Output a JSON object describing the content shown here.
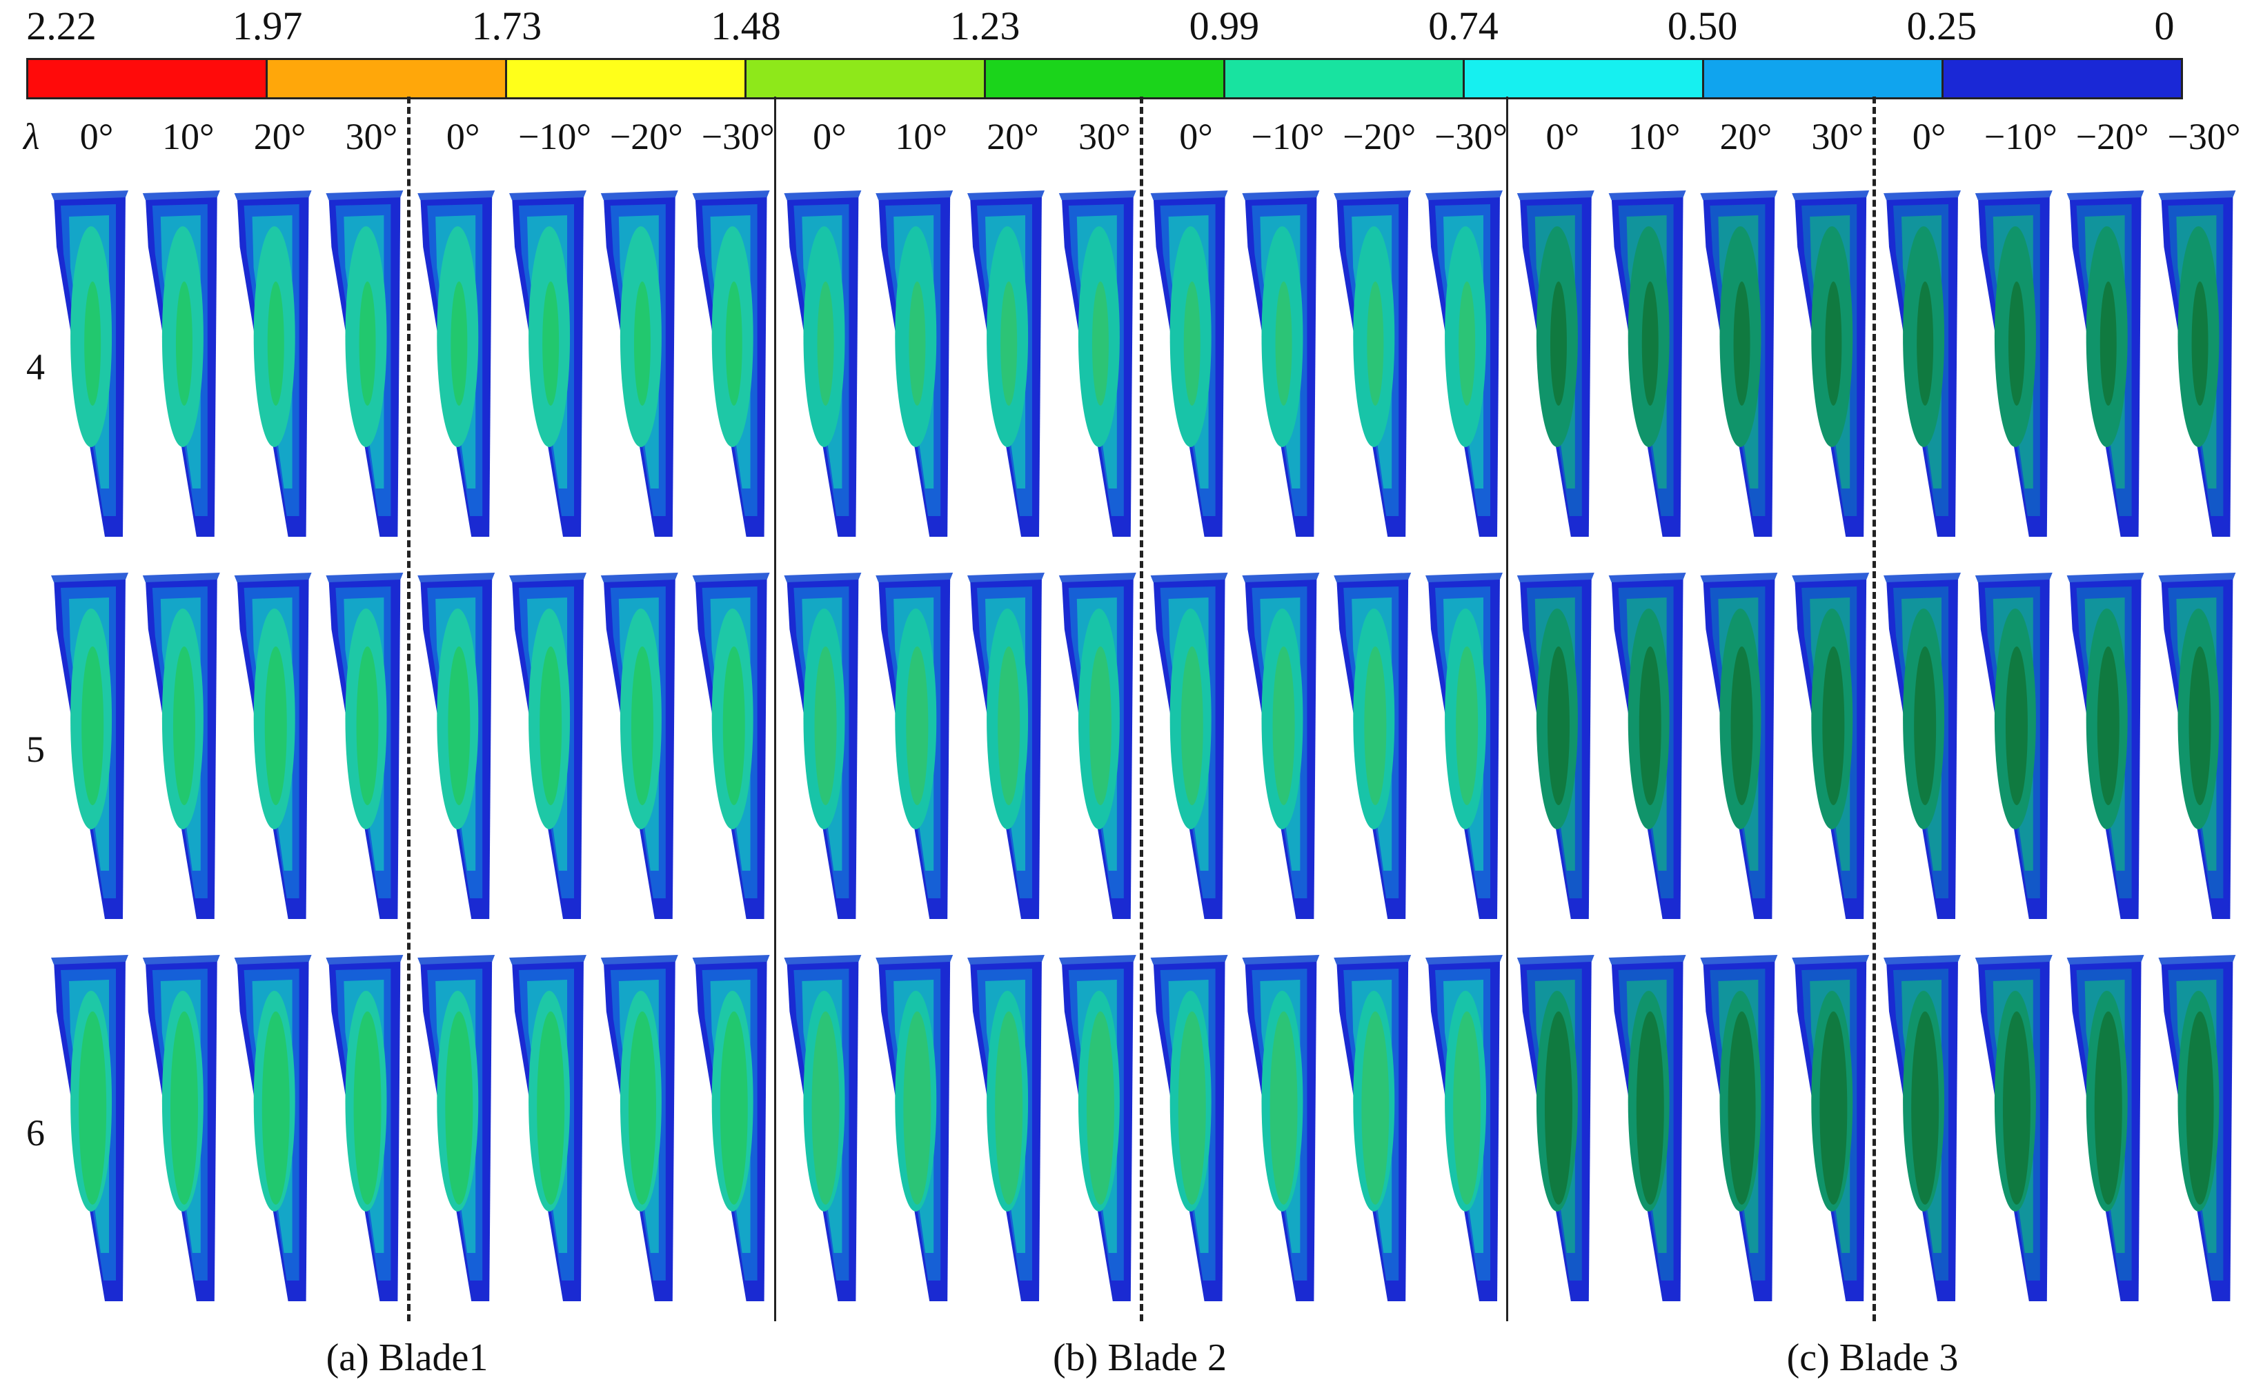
{
  "colorbar": {
    "ticks": [
      "2.22",
      "1.97",
      "1.73",
      "1.48",
      "1.23",
      "0.99",
      "0.74",
      "0.50",
      "0.25",
      "0"
    ],
    "colors": [
      "#ff0a0a",
      "#ffa70a",
      "#ffff1a",
      "#8ee81a",
      "#1bd41b",
      "#18e3a0",
      "#16f0f0",
      "#10a4ee",
      "#1a28d6"
    ]
  },
  "lambda_symbol": "λ",
  "angle_groups": [
    [
      "0°",
      "10°",
      "20°",
      "30°"
    ],
    [
      "0°",
      "−10°",
      "−20°",
      "−30°"
    ],
    [
      "0°",
      "10°",
      "20°",
      "30°"
    ],
    [
      "0°",
      "−10°",
      "−20°",
      "−30°"
    ],
    [
      "0°",
      "10°",
      "20°",
      "30°"
    ],
    [
      "0°",
      "−10°",
      "−20°",
      "−30°"
    ]
  ],
  "rows": [
    "4",
    "5",
    "6"
  ],
  "captions": [
    "(a) Blade1",
    "(b) Blade 2",
    "(c) Blade 3"
  ],
  "blade_palettes": [
    {
      "edge": "#1a2ad2",
      "band1": "#1560d8",
      "band2": "#14a6c8",
      "mid": "#1ec8a6",
      "core": "#22c86e"
    },
    {
      "edge": "#1a2ad2",
      "band1": "#1660d6",
      "band2": "#14a8c4",
      "mid": "#18c4a8",
      "core": "#2cc476"
    },
    {
      "edge": "#1a2ad2",
      "band1": "#1258c8",
      "band2": "#11949c",
      "mid": "#10946a",
      "core": "#107a40"
    }
  ]
}
